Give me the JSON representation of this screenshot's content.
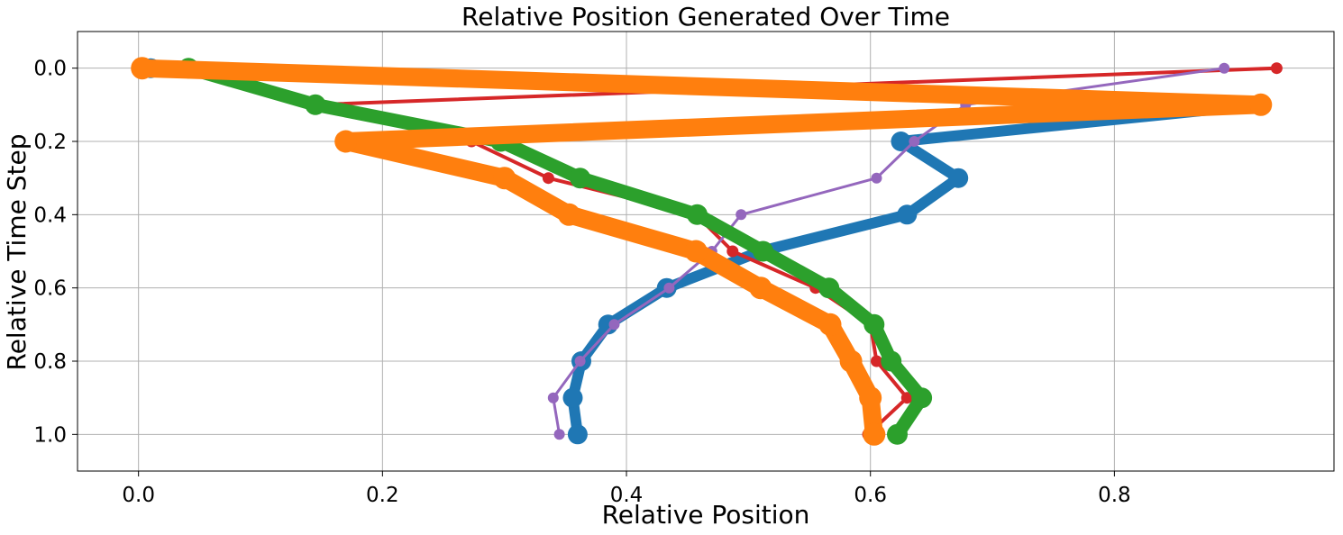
{
  "chart_data": {
    "type": "line",
    "title": "Relative Position Generated Over Time",
    "xlabel": "Relative Position",
    "ylabel": "Relative Time Step",
    "xlim": [
      -0.05,
      0.98
    ],
    "ylim": [
      1.1,
      -0.1
    ],
    "y_inverted": true,
    "grid": true,
    "x_ticks": [
      "0.0",
      "0.2",
      "0.4",
      "0.6",
      "0.8"
    ],
    "y_ticks": [
      "0.0",
      "0.2",
      "0.4",
      "0.6",
      "0.8",
      "1.0"
    ],
    "series": [
      {
        "color": "#1f77b4",
        "line_width": 12,
        "marker_radius": 11,
        "points": [
          [
            0.01,
            0.0
          ],
          [
            0.92,
            0.1
          ],
          [
            0.625,
            0.2
          ],
          [
            0.672,
            0.3
          ],
          [
            0.63,
            0.4
          ],
          [
            0.51,
            0.5
          ],
          [
            0.433,
            0.6
          ],
          [
            0.385,
            0.7
          ],
          [
            0.363,
            0.8
          ],
          [
            0.356,
            0.9
          ],
          [
            0.36,
            1.0
          ]
        ]
      },
      {
        "color": "#d62728",
        "line_width": 4,
        "marker_radius": 6.5,
        "points": [
          [
            0.933,
            0.0
          ],
          [
            0.145,
            0.1
          ],
          [
            0.273,
            0.2
          ],
          [
            0.336,
            0.3
          ],
          [
            0.457,
            0.4
          ],
          [
            0.487,
            0.5
          ],
          [
            0.555,
            0.6
          ],
          [
            0.6,
            0.7
          ],
          [
            0.605,
            0.8
          ],
          [
            0.63,
            0.9
          ],
          [
            0.598,
            1.0
          ]
        ]
      },
      {
        "color": "#9467bd",
        "line_width": 3,
        "marker_radius": 6,
        "points": [
          [
            0.89,
            0.0
          ],
          [
            0.678,
            0.1
          ],
          [
            0.636,
            0.2
          ],
          [
            0.605,
            0.3
          ],
          [
            0.494,
            0.4
          ],
          [
            0.47,
            0.5
          ],
          [
            0.435,
            0.6
          ],
          [
            0.39,
            0.7
          ],
          [
            0.362,
            0.8
          ],
          [
            0.34,
            0.9
          ],
          [
            0.345,
            1.0
          ]
        ]
      },
      {
        "color": "#2ca02c",
        "line_width": 15,
        "marker_radius": 11.5,
        "points": [
          [
            0.041,
            0.0
          ],
          [
            0.145,
            0.1
          ],
          [
            0.297,
            0.2
          ],
          [
            0.362,
            0.3
          ],
          [
            0.458,
            0.4
          ],
          [
            0.512,
            0.5
          ],
          [
            0.566,
            0.6
          ],
          [
            0.603,
            0.7
          ],
          [
            0.617,
            0.8
          ],
          [
            0.642,
            0.9
          ],
          [
            0.622,
            1.0
          ]
        ]
      },
      {
        "color": "#ff7f0e",
        "line_width": 20,
        "marker_radius": 12.5,
        "points": [
          [
            0.003,
            0.0
          ],
          [
            0.92,
            0.1
          ],
          [
            0.17,
            0.2
          ],
          [
            0.3,
            0.3
          ],
          [
            0.353,
            0.4
          ],
          [
            0.457,
            0.5
          ],
          [
            0.51,
            0.6
          ],
          [
            0.567,
            0.7
          ],
          [
            0.584,
            0.8
          ],
          [
            0.6,
            0.9
          ],
          [
            0.603,
            1.0
          ]
        ]
      }
    ]
  }
}
